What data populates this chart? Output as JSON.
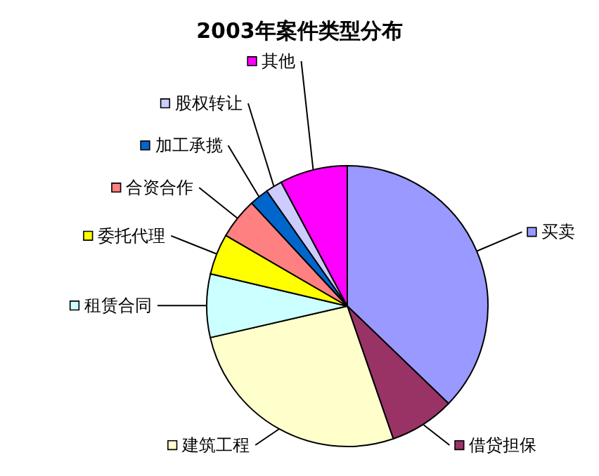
{
  "chart_data": {
    "type": "pie",
    "title": "2003年案件类型分布",
    "categories": [
      "买卖",
      "借贷担保",
      "建筑工程",
      "租赁合同",
      "委托代理",
      "合资合作",
      "加工承揽",
      "股权转让",
      "其他"
    ],
    "values": [
      37.2,
      7.5,
      26.7,
      7.3,
      4.7,
      4.7,
      2.2,
      1.9,
      7.8
    ],
    "colors": [
      "#9999ff",
      "#993366",
      "#ffffcc",
      "#ccffff",
      "#ffff00",
      "#ff8080",
      "#0066cc",
      "#ccccff",
      "#ff00ff"
    ],
    "legend": "left"
  }
}
